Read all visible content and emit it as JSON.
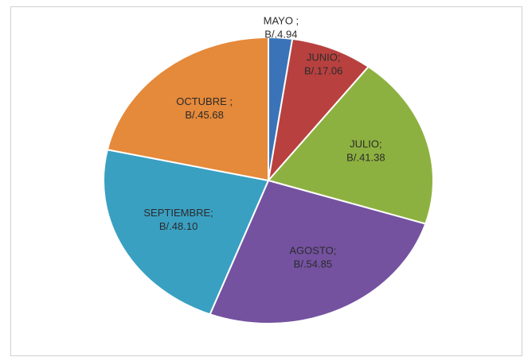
{
  "chart_data": {
    "type": "pie",
    "title": "",
    "categories": [
      "MAYO",
      "JUNIO",
      "JULIO",
      "AGOSTO",
      "SEPTIEMBRE",
      "OCTUBRE"
    ],
    "values": [
      4.94,
      17.06,
      41.38,
      54.85,
      48.1,
      45.68
    ],
    "labels": [
      [
        "MAYO ;",
        "B/.4.94"
      ],
      [
        "JUNIO;",
        "B/.17.06"
      ],
      [
        "JULIO;",
        "B/.41.38"
      ],
      [
        "AGOSTO;",
        "B/.54.85"
      ],
      [
        "SEPTIEMBRE;",
        "B/.48.10"
      ],
      [
        "OCTUBRE ;",
        "B/.45.68"
      ]
    ],
    "colors": [
      "#3a73b8",
      "#b8413f",
      "#8db140",
      "#7452a0",
      "#3aa0c2",
      "#e5893a"
    ],
    "start_angle_deg": 0,
    "direction": "clockwise",
    "legend": "none",
    "label_placement": "inside"
  }
}
